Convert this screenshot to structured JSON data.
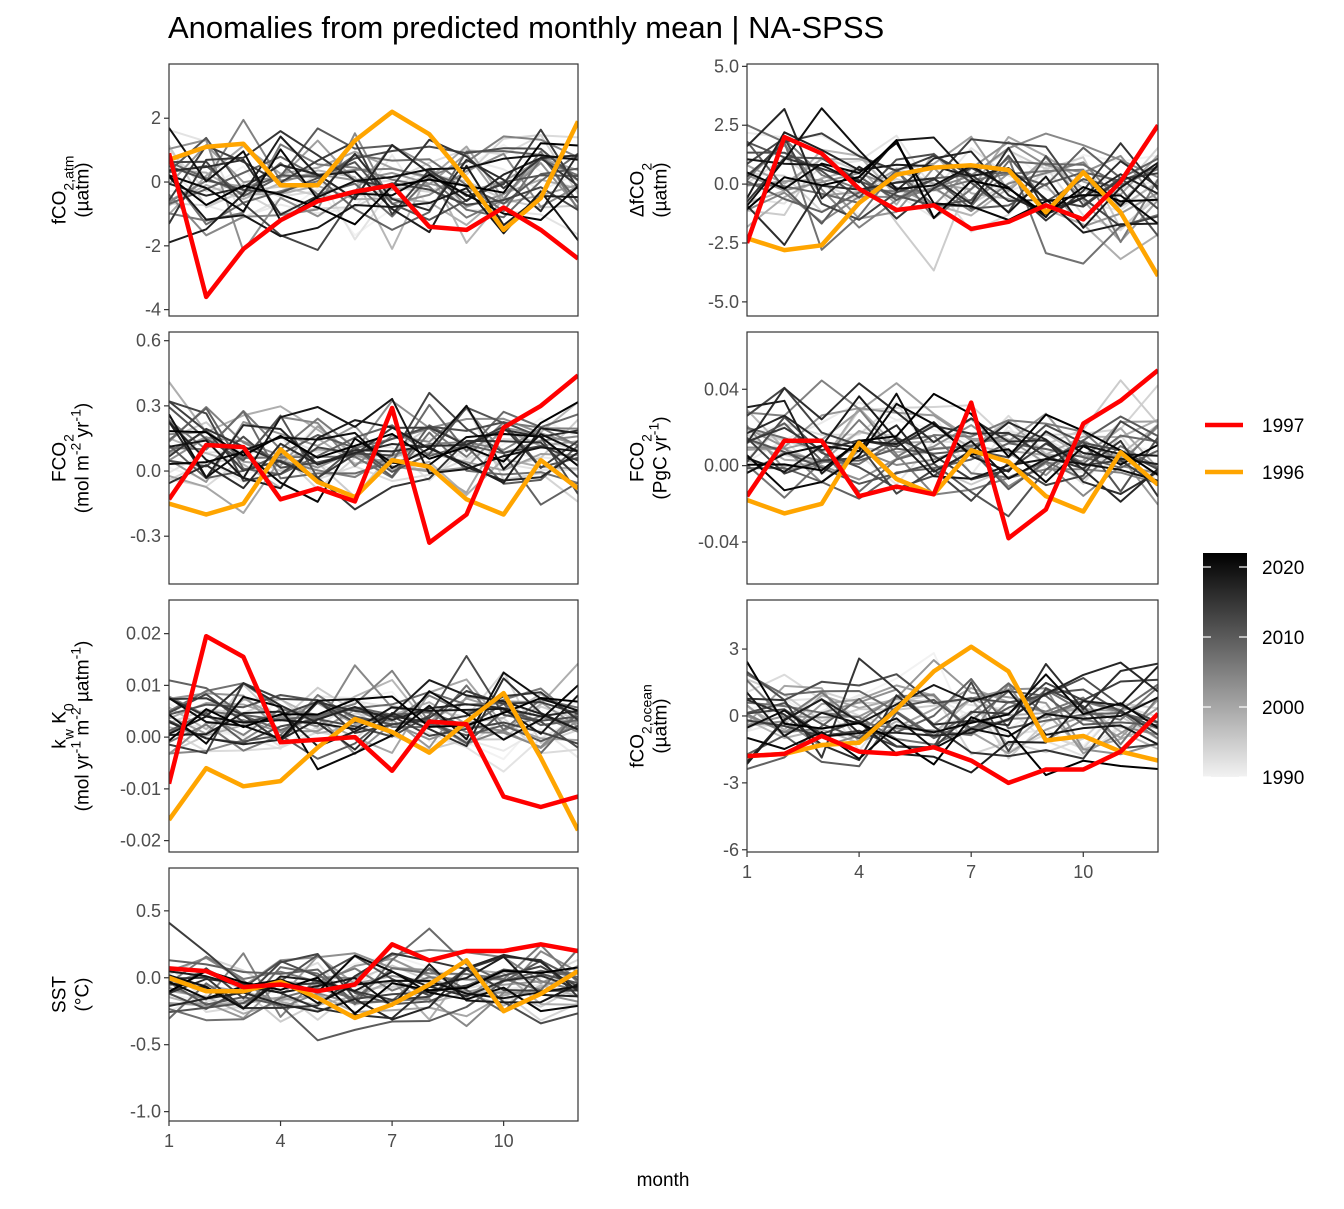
{
  "title": "Anomalies from predicted monthly mean | NA-SPSS",
  "x_axis_title": "month",
  "colors": {
    "highlight_1997": "#ff0000",
    "highlight_1996": "#ffa500",
    "gradient_low": "#f2f2f2",
    "gradient_high": "#000000"
  },
  "legend": {
    "lines": [
      {
        "label": "1997",
        "color": "#ff0000"
      },
      {
        "label": "1996",
        "color": "#ffa500"
      }
    ],
    "colorbar": {
      "min": 1990,
      "max": 2022,
      "ticks": [
        {
          "value": 2020,
          "label": "2020"
        },
        {
          "value": 2010,
          "label": "2010"
        },
        {
          "value": 2000,
          "label": "2000"
        },
        {
          "value": 1990,
          "label": "1990"
        }
      ]
    }
  },
  "chart_data": [
    {
      "type": "line",
      "id": "fco2atm",
      "ylabel_lines": [
        [
          [
            "fCO",
            ""
          ],
          [
            "2,atm",
            "sub"
          ]
        ],
        [
          [
            "(µatm)",
            ""
          ]
        ]
      ],
      "xlim": [
        1,
        12
      ],
      "ylim": [
        -4.2,
        3.7
      ],
      "x_ticks": [
        {
          "v": 1,
          "label": "1"
        },
        {
          "v": 4,
          "label": "4"
        },
        {
          "v": 7,
          "label": "7"
        },
        {
          "v": 10,
          "label": "10"
        }
      ],
      "y_ticks": [
        {
          "v": 2,
          "label": "2"
        },
        {
          "v": 0,
          "label": "0"
        },
        {
          "v": -2,
          "label": "-2"
        },
        {
          "v": -4,
          "label": "-4"
        }
      ],
      "x_axis_shown": false,
      "highlight": [
        {
          "name": "1996",
          "color": "#ffa500",
          "values": [
            0.7,
            1.1,
            1.2,
            -0.1,
            -0.1,
            1.3,
            2.2,
            1.5,
            0.1,
            -1.5,
            -0.5,
            1.9
          ]
        },
        {
          "name": "1997",
          "color": "#ff0000",
          "values": [
            0.9,
            -3.6,
            -2.1,
            -1.2,
            -0.6,
            -0.3,
            -0.1,
            -1.4,
            -1.5,
            -0.8,
            -1.5,
            -2.4
          ]
        }
      ]
    },
    {
      "type": "line",
      "id": "dfco2",
      "ylabel_lines": [
        [
          [
            "ΔfCO",
            ""
          ],
          [
            "2",
            "sub"
          ]
        ],
        [
          [
            "(µatm)",
            ""
          ]
        ]
      ],
      "xlim": [
        1,
        12
      ],
      "ylim": [
        -5.6,
        5.1
      ],
      "x_ticks": [
        {
          "v": 1,
          "label": "1"
        },
        {
          "v": 4,
          "label": "4"
        },
        {
          "v": 7,
          "label": "7"
        },
        {
          "v": 10,
          "label": "10"
        }
      ],
      "y_ticks": [
        {
          "v": 5,
          "label": "5.0"
        },
        {
          "v": 2.5,
          "label": "2.5"
        },
        {
          "v": 0,
          "label": "0.0"
        },
        {
          "v": -2.5,
          "label": "-2.5"
        },
        {
          "v": -5,
          "label": "-5.0"
        }
      ],
      "x_axis_shown": false,
      "highlight": [
        {
          "name": "1996",
          "color": "#ffa500",
          "values": [
            -2.3,
            -2.8,
            -2.6,
            -0.8,
            0.4,
            0.7,
            0.8,
            0.6,
            -1.2,
            0.5,
            -1.2,
            -3.9
          ]
        },
        {
          "name": "1997",
          "color": "#ff0000",
          "values": [
            -2.5,
            2.0,
            1.3,
            -0.2,
            -1.1,
            -0.9,
            -1.9,
            -1.6,
            -0.9,
            -1.5,
            0.1,
            2.5
          ]
        }
      ]
    },
    {
      "type": "line",
      "id": "fco2flux",
      "ylabel_lines": [
        [
          [
            "FCO",
            ""
          ],
          [
            "2",
            "sub"
          ]
        ],
        [
          [
            "(mol m",
            ""
          ],
          [
            "-2",
            "sup"
          ],
          [
            " yr",
            ""
          ],
          [
            "-1",
            "sup"
          ],
          [
            ")",
            ""
          ]
        ]
      ],
      "xlim": [
        1,
        12
      ],
      "ylim": [
        -0.52,
        0.64
      ],
      "x_ticks": [
        {
          "v": 1,
          "label": "1"
        },
        {
          "v": 4,
          "label": "4"
        },
        {
          "v": 7,
          "label": "7"
        },
        {
          "v": 10,
          "label": "10"
        }
      ],
      "y_ticks": [
        {
          "v": 0.6,
          "label": "0.6"
        },
        {
          "v": 0.3,
          "label": "0.3"
        },
        {
          "v": 0,
          "label": "0.0"
        },
        {
          "v": -0.3,
          "label": "-0.3"
        }
      ],
      "x_axis_shown": false,
      "highlight": [
        {
          "name": "1996",
          "color": "#ffa500",
          "values": [
            -0.15,
            -0.2,
            -0.15,
            0.1,
            -0.05,
            -0.12,
            0.05,
            0.02,
            -0.13,
            -0.2,
            0.05,
            -0.08
          ]
        },
        {
          "name": "1997",
          "color": "#ff0000",
          "values": [
            -0.13,
            0.12,
            0.11,
            -0.13,
            -0.08,
            -0.14,
            0.29,
            -0.33,
            -0.2,
            0.2,
            0.3,
            0.44
          ]
        }
      ]
    },
    {
      "type": "line",
      "id": "fco2pgc",
      "ylabel_lines": [
        [
          [
            "FCO",
            ""
          ],
          [
            "2",
            "sub"
          ]
        ],
        [
          [
            "(PgC yr",
            ""
          ],
          [
            "-1",
            "sup"
          ],
          [
            ")",
            ""
          ]
        ]
      ],
      "xlim": [
        1,
        12
      ],
      "ylim": [
        -0.062,
        0.07
      ],
      "x_ticks": [
        {
          "v": 1,
          "label": "1"
        },
        {
          "v": 4,
          "label": "4"
        },
        {
          "v": 7,
          "label": "7"
        },
        {
          "v": 10,
          "label": "10"
        }
      ],
      "y_ticks": [
        {
          "v": 0.04,
          "label": "0.04"
        },
        {
          "v": 0,
          "label": "0.00"
        },
        {
          "v": -0.04,
          "label": "-0.04"
        }
      ],
      "x_axis_shown": false,
      "highlight": [
        {
          "name": "1996",
          "color": "#ffa500",
          "values": [
            -0.018,
            -0.025,
            -0.02,
            0.012,
            -0.007,
            -0.015,
            0.008,
            0.002,
            -0.016,
            -0.024,
            0.007,
            -0.01
          ]
        },
        {
          "name": "1997",
          "color": "#ff0000",
          "values": [
            -0.016,
            0.013,
            0.013,
            -0.016,
            -0.011,
            -0.015,
            0.033,
            -0.038,
            -0.023,
            0.022,
            0.034,
            0.05
          ]
        }
      ]
    },
    {
      "type": "line",
      "id": "kwk0",
      "ylabel_lines": [
        [
          [
            "k",
            ""
          ],
          [
            "w",
            "sub"
          ],
          [
            " K",
            ""
          ],
          [
            "0",
            "sub"
          ]
        ],
        [
          [
            "(mol yr",
            ""
          ],
          [
            "-1",
            "sup"
          ],
          [
            " m",
            ""
          ],
          [
            "-2",
            "sup"
          ],
          [
            " µatm",
            ""
          ],
          [
            "-1",
            "sup"
          ],
          [
            ")",
            ""
          ]
        ]
      ],
      "xlim": [
        1,
        12
      ],
      "ylim": [
        -0.0222,
        0.0265
      ],
      "x_ticks": [
        {
          "v": 1,
          "label": "1"
        },
        {
          "v": 4,
          "label": "4"
        },
        {
          "v": 7,
          "label": "7"
        },
        {
          "v": 10,
          "label": "10"
        }
      ],
      "y_ticks": [
        {
          "v": 0.02,
          "label": "0.02"
        },
        {
          "v": 0.01,
          "label": "0.01"
        },
        {
          "v": 0,
          "label": "0.00"
        },
        {
          "v": -0.01,
          "label": "-0.01"
        },
        {
          "v": -0.02,
          "label": "-0.02"
        }
      ],
      "x_axis_shown": false,
      "highlight": [
        {
          "name": "1996",
          "color": "#ffa500",
          "values": [
            -0.016,
            -0.006,
            -0.0095,
            -0.0085,
            -0.002,
            0.0035,
            0.001,
            -0.003,
            0.003,
            0.0085,
            -0.004,
            -0.018
          ]
        },
        {
          "name": "1997",
          "color": "#ff0000",
          "values": [
            -0.009,
            0.0195,
            0.0155,
            -0.001,
            -0.0005,
            0.0,
            -0.0065,
            0.003,
            0.0025,
            -0.0115,
            -0.0135,
            -0.0115
          ]
        }
      ]
    },
    {
      "type": "line",
      "id": "fco2ocean",
      "ylabel_lines": [
        [
          [
            "fCO",
            ""
          ],
          [
            "2,ocean",
            "sub"
          ]
        ],
        [
          [
            "(µatm)",
            ""
          ]
        ]
      ],
      "xlim": [
        1,
        12
      ],
      "ylim": [
        -6.1,
        5.2
      ],
      "x_ticks": [
        {
          "v": 1,
          "label": "1"
        },
        {
          "v": 4,
          "label": "4"
        },
        {
          "v": 7,
          "label": "7"
        },
        {
          "v": 10,
          "label": "10"
        }
      ],
      "y_ticks": [
        {
          "v": 3,
          "label": "3"
        },
        {
          "v": 0,
          "label": "0"
        },
        {
          "v": -3,
          "label": "-3"
        },
        {
          "v": -6,
          "label": "-6"
        }
      ],
      "x_axis_shown": true,
      "highlight": [
        {
          "name": "1996",
          "color": "#ffa500",
          "values": [
            -1.8,
            -1.7,
            -1.3,
            -1.2,
            0.3,
            2.0,
            3.1,
            2.0,
            -1.1,
            -0.9,
            -1.6,
            -2.0
          ]
        },
        {
          "name": "1997",
          "color": "#ff0000",
          "values": [
            -1.8,
            -1.7,
            -0.9,
            -1.6,
            -1.7,
            -1.4,
            -2.0,
            -3.0,
            -2.4,
            -2.4,
            -1.6,
            0.1
          ]
        }
      ]
    },
    {
      "type": "line",
      "id": "sst",
      "ylabel_lines": [
        [
          [
            "SST",
            ""
          ]
        ],
        [
          [
            "(°C)",
            ""
          ]
        ]
      ],
      "xlim": [
        1,
        12
      ],
      "ylim": [
        -1.07,
        0.82
      ],
      "x_ticks": [
        {
          "v": 1,
          "label": "1"
        },
        {
          "v": 4,
          "label": "4"
        },
        {
          "v": 7,
          "label": "7"
        },
        {
          "v": 10,
          "label": "10"
        }
      ],
      "y_ticks": [
        {
          "v": 0.5,
          "label": "0.5"
        },
        {
          "v": 0,
          "label": "0.0"
        },
        {
          "v": -0.5,
          "label": "-0.5"
        },
        {
          "v": -1,
          "label": "-1.0"
        }
      ],
      "x_axis_shown": true,
      "highlight": [
        {
          "name": "1996",
          "color": "#ffa500",
          "values": [
            0.0,
            -0.1,
            -0.1,
            -0.03,
            -0.15,
            -0.3,
            -0.2,
            -0.05,
            0.13,
            -0.25,
            -0.12,
            0.05
          ]
        },
        {
          "name": "1997",
          "color": "#ff0000",
          "values": [
            0.07,
            0.05,
            -0.07,
            -0.05,
            -0.1,
            -0.05,
            0.25,
            0.13,
            0.2,
            0.2,
            0.25,
            0.2
          ]
        }
      ]
    }
  ]
}
